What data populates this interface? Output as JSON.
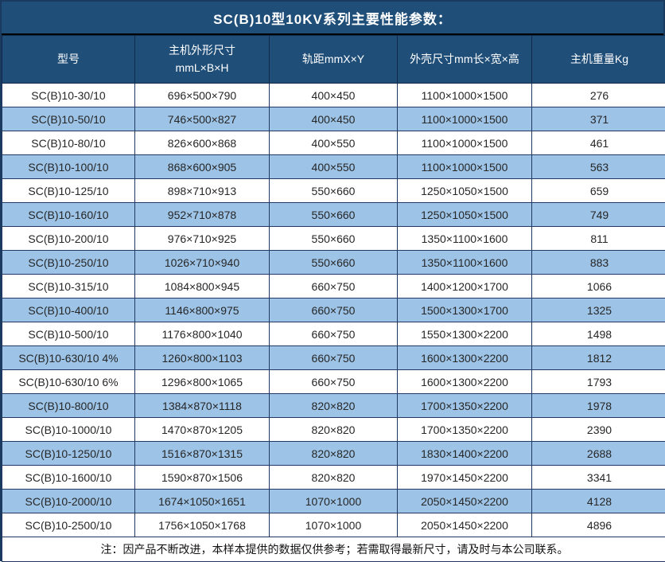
{
  "title": "SC(B)10型10KV系列主要性能参数：",
  "note": "注：因产品不断改进，本样本提供的数据仅供参考；若需取得最新尺寸，请及时与本公司联系。",
  "colors": {
    "header_bg": "#1F4E79",
    "header_text": "#FFFFFF",
    "row_bg": "#FFFFFF",
    "row_alt_bg": "#9DC3E6",
    "grid_border": "#1F3864",
    "cell_text": "#262626"
  },
  "table": {
    "columns": [
      {
        "label": "型号"
      },
      {
        "label": "主机外形尺寸",
        "label2": "mmL×B×H"
      },
      {
        "label": "轨距mmX×Y"
      },
      {
        "label": "外壳尺寸mm长×宽×高"
      },
      {
        "label": "主机重量Kg"
      }
    ],
    "rows": [
      [
        "SC(B)10-30/10",
        "696×500×790",
        "400×450",
        "1100×1000×1500",
        "276"
      ],
      [
        "SC(B)10-50/10",
        "746×500×827",
        "400×450",
        "1100×1000×1500",
        "371"
      ],
      [
        "SC(B)10-80/10",
        "826×600×868",
        "400×550",
        "1100×1000×1500",
        "461"
      ],
      [
        "SC(B)10-100/10",
        "868×600×905",
        "400×550",
        "1100×1000×1500",
        "563"
      ],
      [
        "SC(B)10-125/10",
        "898×710×913",
        "550×660",
        "1250×1050×1500",
        "659"
      ],
      [
        "SC(B)10-160/10",
        "952×710×878",
        "550×660",
        "1250×1050×1500",
        "749"
      ],
      [
        "SC(B)10-200/10",
        "976×710×925",
        "550×660",
        "1350×1100×1600",
        "811"
      ],
      [
        "SC(B)10-250/10",
        "1026×710×940",
        "550×660",
        "1350×1100×1600",
        "883"
      ],
      [
        "SC(B)10-315/10",
        "1084×800×945",
        "660×750",
        "1400×1200×1700",
        "1066"
      ],
      [
        "SC(B)10-400/10",
        "1146×800×975",
        "660×750",
        "1500×1300×1700",
        "1325"
      ],
      [
        "SC(B)10-500/10",
        "1176×800×1040",
        "660×750",
        "1550×1300×2200",
        "1498"
      ],
      [
        "SC(B)10-630/10 4%",
        "1260×800×1103",
        "660×750",
        "1600×1300×2200",
        "1812"
      ],
      [
        "SC(B)10-630/10 6%",
        "1296×800×1065",
        "660×750",
        "1600×1300×2200",
        "1793"
      ],
      [
        "SC(B)10-800/10",
        "1384×870×1118",
        "820×820",
        "1700×1350×2200",
        "1978"
      ],
      [
        "SC(B)10-1000/10",
        "1470×870×1205",
        "820×820",
        "1700×1350×2200",
        "2390"
      ],
      [
        "SC(B)10-1250/10",
        "1516×870×1315",
        "820×820",
        "1830×1400×2200",
        "2688"
      ],
      [
        "SC(B)10-1600/10",
        "1590×870×1506",
        "820×820",
        "1970×1450×2200",
        "3341"
      ],
      [
        "SC(B)10-2000/10",
        "1674×1050×1651",
        "1070×1000",
        "2050×1450×2200",
        "4128"
      ],
      [
        "SC(B)10-2500/10",
        "1756×1050×1768",
        "1070×1000",
        "2050×1450×2200",
        "4896"
      ]
    ]
  }
}
